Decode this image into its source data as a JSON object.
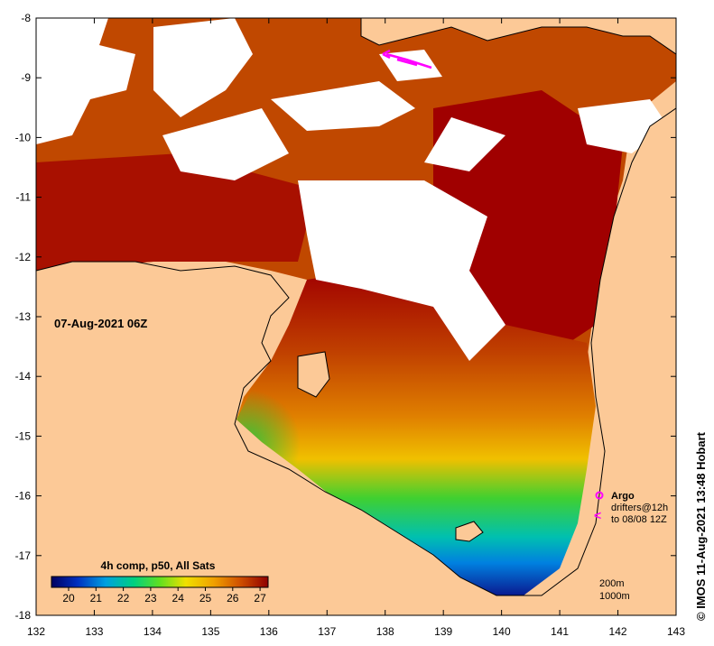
{
  "map": {
    "date_label": "07-Aug-2021 06Z",
    "credit": "©  IMOS 11-Aug-2021 13:48 Hobart",
    "lon_ticks": [
      "132",
      "133",
      "134",
      "135",
      "136",
      "137",
      "138",
      "139",
      "140",
      "141",
      "142",
      "143"
    ],
    "lat_ticks": [
      "-8",
      "-9",
      "-10",
      "-11",
      "-12",
      "-13",
      "-14",
      "-15",
      "-16",
      "-17",
      "-18"
    ],
    "colorbar": {
      "title": "4h comp, p50, All Sats",
      "ticks": [
        "20",
        "21",
        "22",
        "23",
        "24",
        "25",
        "26",
        "27"
      ]
    },
    "legend": {
      "argo": "Argo",
      "drifters_line1": "drifters@12h",
      "drifters_line2": "to 08/08 12Z",
      "depth_200": "200m",
      "depth_1000": "1000m"
    },
    "colors": {
      "land": "#fcc997",
      "cloud": "#ffffff",
      "warm": "#a00000",
      "orange": "#e07800",
      "yellow": "#f0c800",
      "green": "#20c020",
      "cyan": "#00b0e0",
      "blue": "#1020a0",
      "marker": "#ff00ff"
    }
  }
}
